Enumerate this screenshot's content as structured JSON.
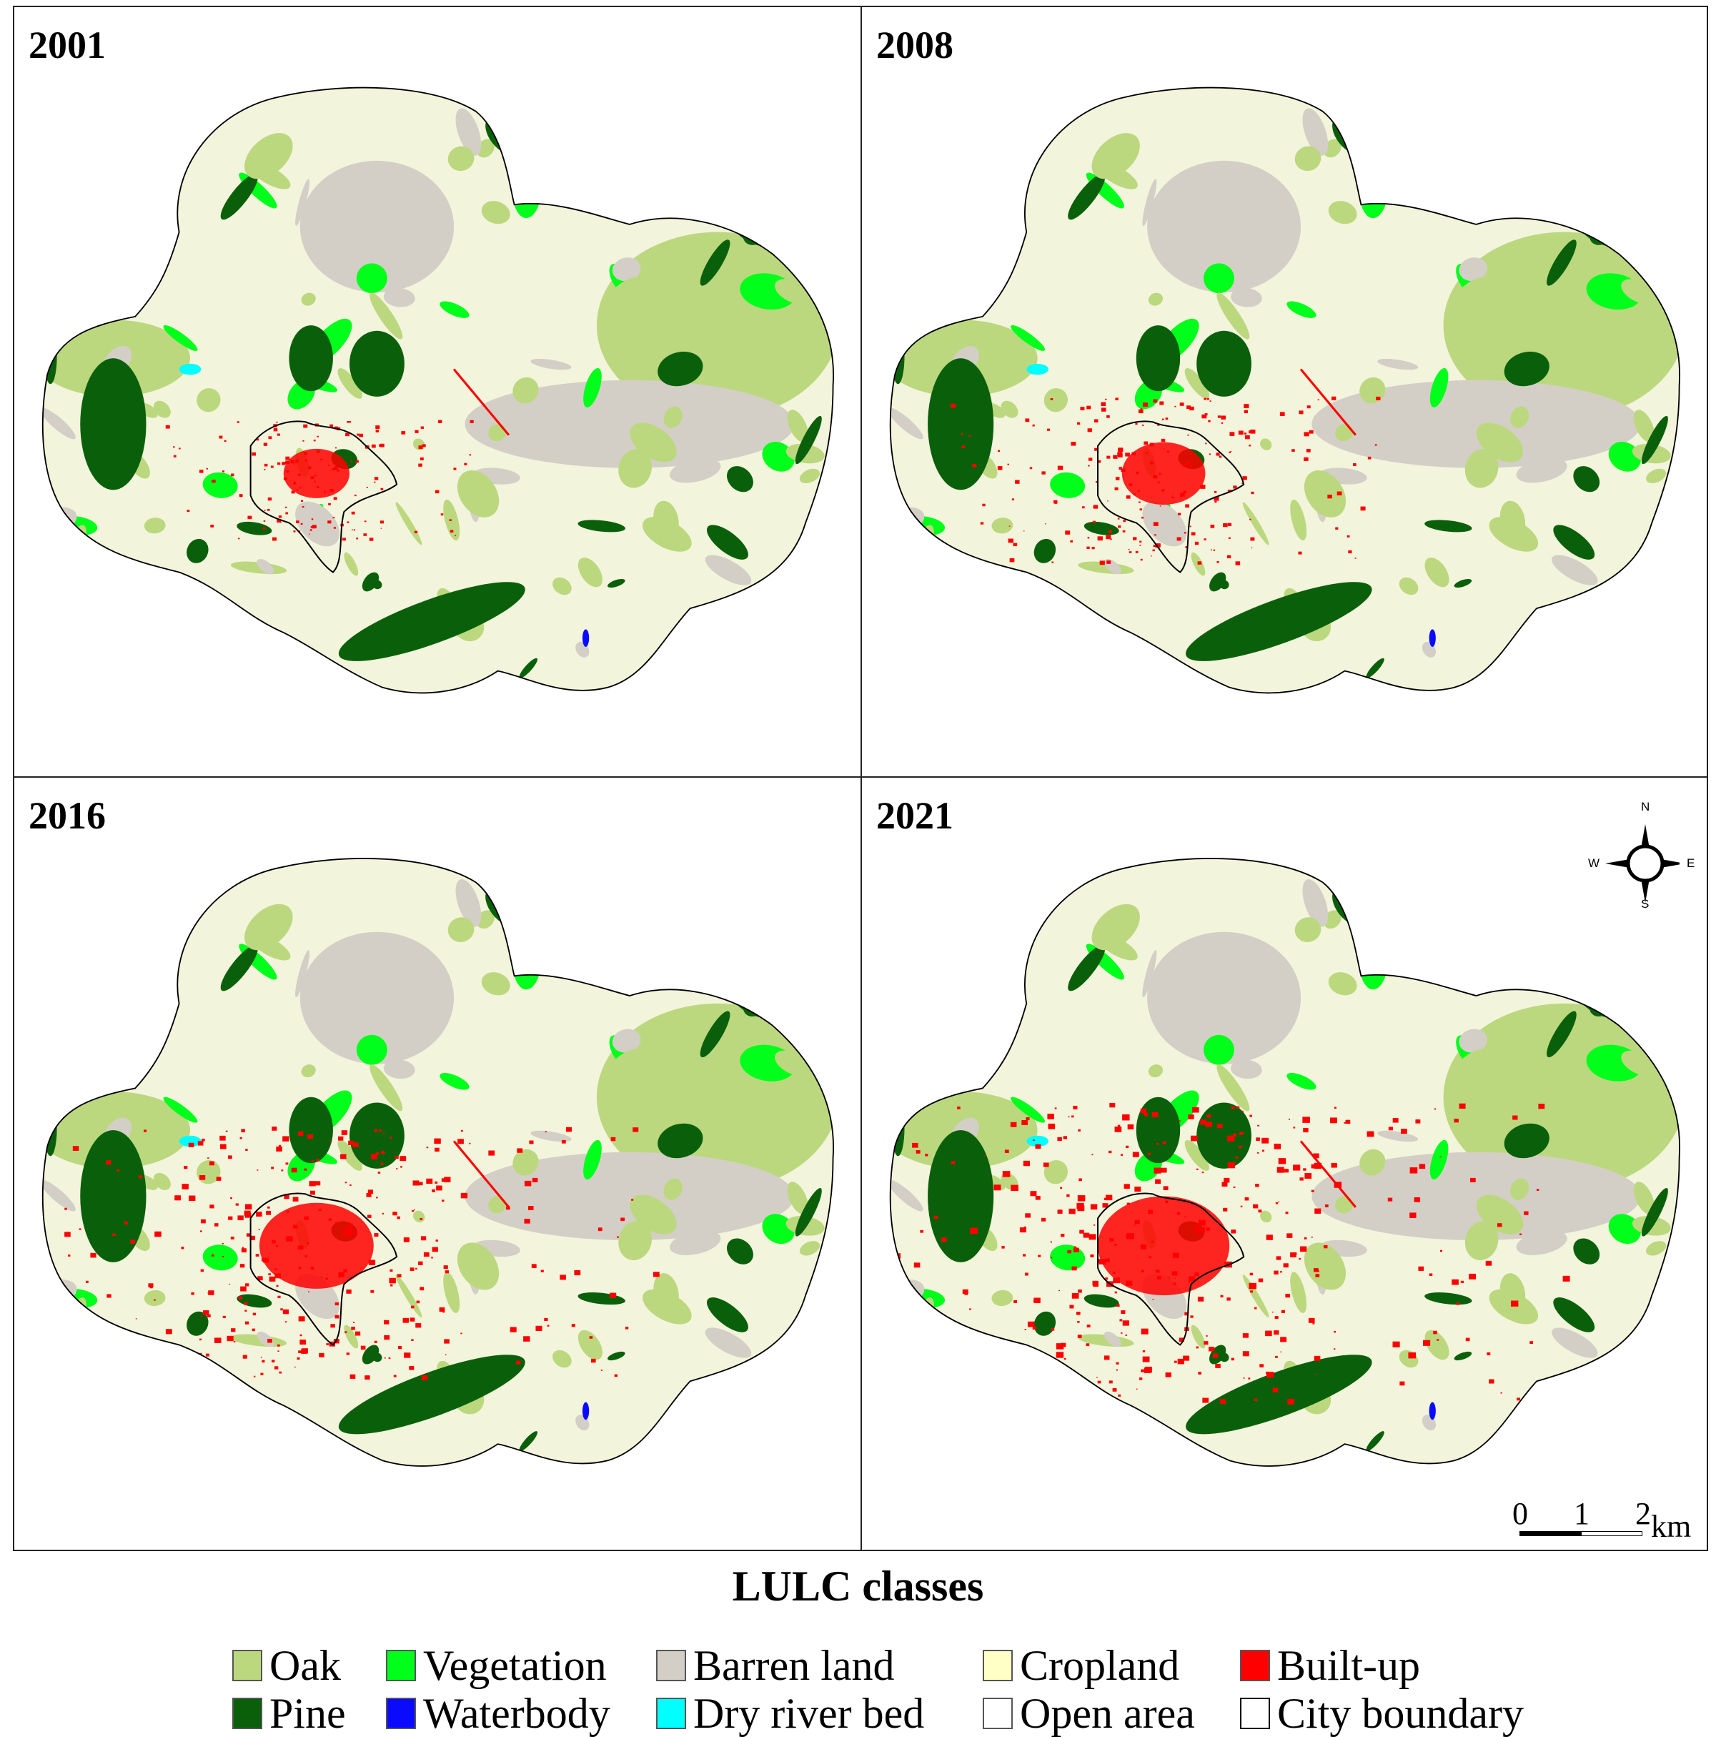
{
  "panels": [
    {
      "year": "2001"
    },
    {
      "year": "2008"
    },
    {
      "year": "2016"
    },
    {
      "year": "2021"
    }
  ],
  "compass": {
    "n": "N",
    "s": "S",
    "e": "E",
    "w": "W"
  },
  "scale_bar": {
    "labels": [
      "0",
      "1",
      "2"
    ],
    "unit": "km"
  },
  "legend": {
    "title": "LULC classes",
    "items": [
      {
        "label": "Oak",
        "color": "#bcd87f"
      },
      {
        "label": "Vegetation",
        "color": "#00ff1a"
      },
      {
        "label": "Barren land",
        "color": "#d3cfc6"
      },
      {
        "label": "Cropland",
        "color": "#ffffc6"
      },
      {
        "label": "Built-up",
        "color": "#ff0000"
      },
      {
        "label": "Pine",
        "color": "#0a600a"
      },
      {
        "label": "Waterbody",
        "color": "#0a0aff"
      },
      {
        "label": "Dry river bed",
        "color": "#00ffff"
      },
      {
        "label": "Open area",
        "color": "#ffffff"
      },
      {
        "label": "City boundary",
        "color": "#ffffff"
      }
    ]
  }
}
